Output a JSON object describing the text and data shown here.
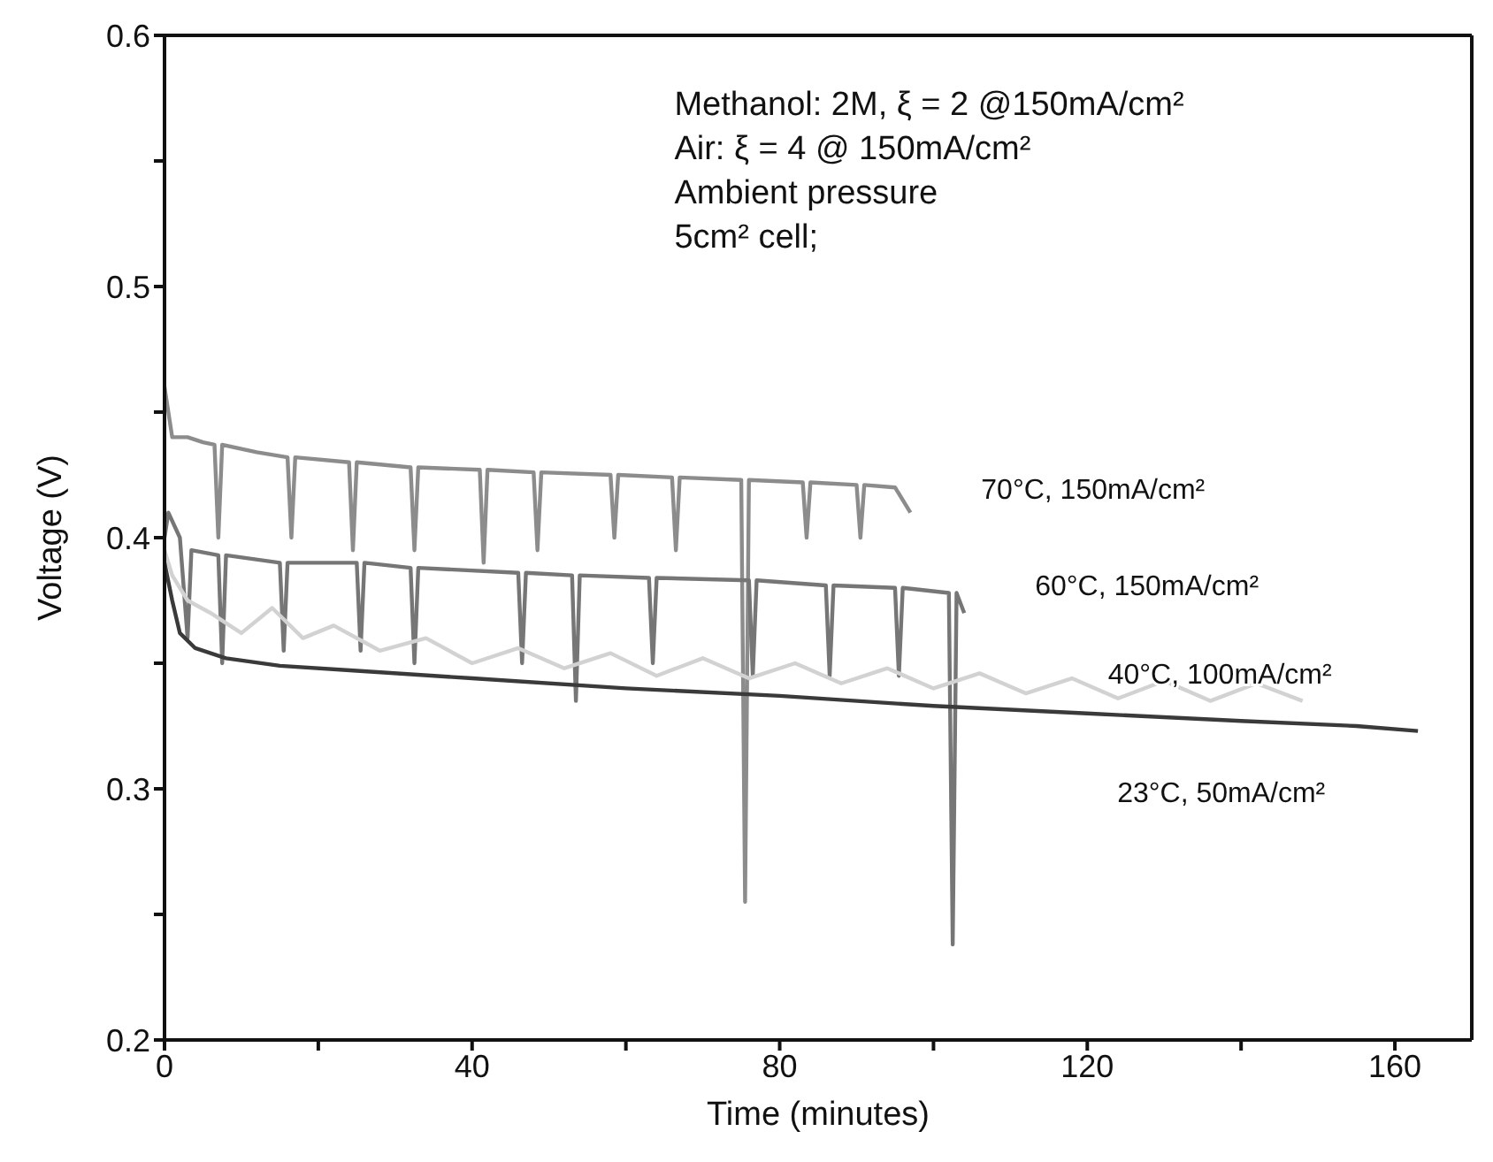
{
  "chart_data": {
    "type": "line",
    "xlabel": "Time (minutes)",
    "ylabel": "Voltage (V)",
    "xlim": [
      0,
      170
    ],
    "xticks": [
      0,
      {
        "value": 20,
        "label": null
      },
      40,
      {
        "value": 60,
        "label": null
      },
      80,
      {
        "value": 100,
        "label": null
      },
      120,
      {
        "value": 140,
        "label": null
      },
      160
    ],
    "ylim": [
      0.2,
      0.6
    ],
    "yticks": [
      0.2,
      {
        "value": 0.25,
        "label": null
      },
      0.3,
      {
        "value": 0.35,
        "label": null
      },
      0.4,
      {
        "value": 0.45,
        "label": null
      },
      0.5,
      {
        "value": 0.55,
        "label": null
      },
      0.6
    ],
    "grid": false,
    "legend": false,
    "marker": "none",
    "line_style": "solid",
    "annotations": [
      "Methanol: 2M,   ξ = 2 @150mA/cm²",
      "Air: ξ = 4 @ 150mA/cm²",
      "Ambient pressure",
      "5cm² cell;"
    ],
    "series": [
      {
        "name": "70°C, 150mA/cm²",
        "color": "#8c8c8c",
        "x": [
          0,
          0.5,
          1,
          3,
          5,
          6.5,
          7,
          7.5,
          12,
          16,
          16.5,
          17,
          24,
          24.5,
          25,
          32,
          32.5,
          33,
          41,
          41.5,
          42,
          48,
          48.5,
          49,
          58,
          58.5,
          59,
          66,
          66.5,
          67,
          75,
          75.5,
          76,
          83,
          83.5,
          84,
          90,
          90.5,
          91,
          95,
          97
        ],
        "values": [
          0.46,
          0.45,
          0.44,
          0.44,
          0.438,
          0.437,
          0.4,
          0.437,
          0.434,
          0.432,
          0.4,
          0.432,
          0.43,
          0.395,
          0.43,
          0.428,
          0.395,
          0.428,
          0.427,
          0.39,
          0.427,
          0.426,
          0.395,
          0.426,
          0.425,
          0.4,
          0.425,
          0.424,
          0.395,
          0.424,
          0.423,
          0.255,
          0.423,
          0.422,
          0.4,
          0.422,
          0.421,
          0.4,
          0.421,
          0.42,
          0.41
        ]
      },
      {
        "name": "60°C, 150mA/cm²",
        "color": "#767676",
        "x": [
          0,
          0.5,
          2,
          3,
          3.5,
          7,
          7.5,
          8,
          15,
          15.5,
          16,
          25,
          25.5,
          26,
          32,
          32.5,
          33,
          46,
          46.5,
          47,
          53,
          53.5,
          54,
          63,
          63.5,
          64,
          76,
          76.5,
          77,
          86,
          86.5,
          87,
          95,
          95.5,
          96,
          102,
          102.5,
          103,
          104
        ],
        "values": [
          0.4,
          0.41,
          0.4,
          0.36,
          0.395,
          0.393,
          0.35,
          0.393,
          0.39,
          0.355,
          0.39,
          0.39,
          0.355,
          0.39,
          0.388,
          0.35,
          0.388,
          0.386,
          0.35,
          0.386,
          0.385,
          0.335,
          0.385,
          0.384,
          0.35,
          0.384,
          0.383,
          0.345,
          0.383,
          0.381,
          0.345,
          0.381,
          0.38,
          0.345,
          0.38,
          0.378,
          0.238,
          0.378,
          0.37
        ]
      },
      {
        "name": "40°C, 100mA/cm²",
        "color": "#d2d2d2",
        "x": [
          0,
          1,
          3,
          6,
          10,
          14,
          18,
          22,
          28,
          34,
          40,
          46,
          52,
          58,
          64,
          70,
          76,
          82,
          88,
          94,
          100,
          106,
          112,
          118,
          124,
          130,
          136,
          142,
          148
        ],
        "values": [
          0.395,
          0.385,
          0.375,
          0.37,
          0.362,
          0.372,
          0.36,
          0.365,
          0.355,
          0.36,
          0.35,
          0.356,
          0.348,
          0.354,
          0.345,
          0.352,
          0.344,
          0.35,
          0.342,
          0.348,
          0.34,
          0.346,
          0.338,
          0.344,
          0.336,
          0.343,
          0.335,
          0.342,
          0.335
        ]
      },
      {
        "name": "23°C, 50mA/cm²",
        "color": "#3a3a3a",
        "x": [
          0,
          1,
          2,
          4,
          8,
          15,
          25,
          40,
          60,
          80,
          100,
          120,
          140,
          155,
          163
        ],
        "values": [
          0.39,
          0.375,
          0.362,
          0.356,
          0.352,
          0.349,
          0.347,
          0.344,
          0.34,
          0.337,
          0.333,
          0.33,
          0.327,
          0.325,
          0.323
        ]
      }
    ]
  }
}
